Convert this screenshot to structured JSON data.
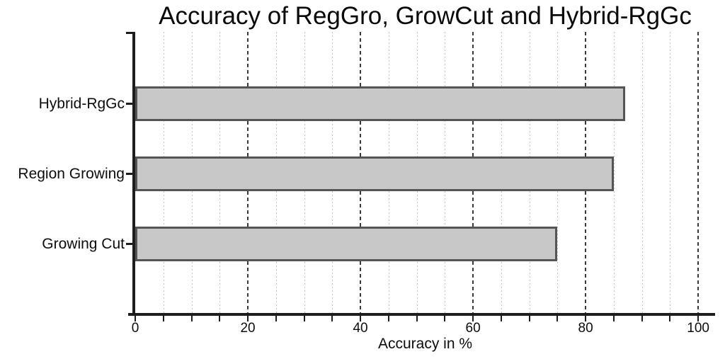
{
  "chart_data": {
    "type": "bar",
    "orientation": "horizontal",
    "title": "Accuracy of RegGro, GrowCut and Hybrid-RgGc",
    "categories": [
      "Hybrid-RgGc",
      "Region Growing",
      "Growing Cut"
    ],
    "values": [
      87,
      85,
      75
    ],
    "xlabel": "Accuracy in %",
    "xlim": [
      0,
      103
    ],
    "x_ticks": [
      0,
      20,
      40,
      60,
      80,
      100
    ],
    "x_minor_step": 5,
    "grid": {
      "major_every": 20,
      "major_style": "dashed",
      "minor_every": 5,
      "minor_style": "dotted"
    },
    "legend": "none",
    "colors": {
      "background": "#ffffff",
      "bar_fill": "#c8c8c8",
      "bar_border": "#555555",
      "major_grid": "#3a3a3a",
      "minor_grid": "#c4c4c4",
      "axis": "#1d1d1d",
      "text": "#0d0d0d"
    }
  }
}
